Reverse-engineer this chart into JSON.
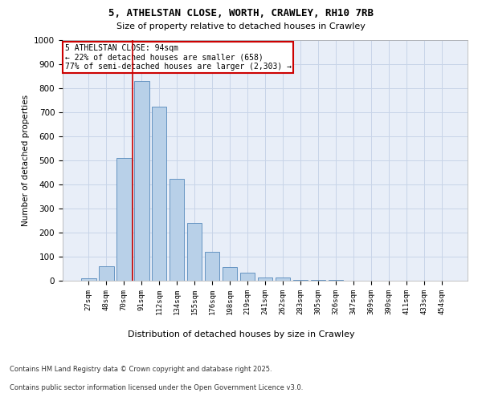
{
  "title_line1": "5, ATHELSTAN CLOSE, WORTH, CRAWLEY, RH10 7RB",
  "title_line2": "Size of property relative to detached houses in Crawley",
  "xlabel": "Distribution of detached houses by size in Crawley",
  "ylabel": "Number of detached properties",
  "bar_labels": [
    "27sqm",
    "48sqm",
    "70sqm",
    "91sqm",
    "112sqm",
    "134sqm",
    "155sqm",
    "176sqm",
    "198sqm",
    "219sqm",
    "241sqm",
    "262sqm",
    "283sqm",
    "305sqm",
    "326sqm",
    "347sqm",
    "369sqm",
    "390sqm",
    "411sqm",
    "433sqm",
    "454sqm"
  ],
  "bar_values": [
    10,
    60,
    510,
    830,
    725,
    425,
    240,
    120,
    58,
    35,
    15,
    12,
    5,
    3,
    2,
    1,
    0,
    0,
    0,
    0,
    0
  ],
  "bar_color": "#b8d0e8",
  "bar_edge_color": "#5588bb",
  "annotation_title": "5 ATHELSTAN CLOSE: 94sqm",
  "annotation_line2": "← 22% of detached houses are smaller (658)",
  "annotation_line3": "77% of semi-detached houses are larger (2,303) →",
  "vline_color": "#cc0000",
  "annotation_box_edge": "#cc0000",
  "grid_color": "#c8d4e8",
  "background_color": "#e8eef8",
  "footer_line1": "Contains HM Land Registry data © Crown copyright and database right 2025.",
  "footer_line2": "Contains public sector information licensed under the Open Government Licence v3.0.",
  "ylim": [
    0,
    1000
  ],
  "yticks": [
    0,
    100,
    200,
    300,
    400,
    500,
    600,
    700,
    800,
    900,
    1000
  ],
  "vline_x": 2.5
}
